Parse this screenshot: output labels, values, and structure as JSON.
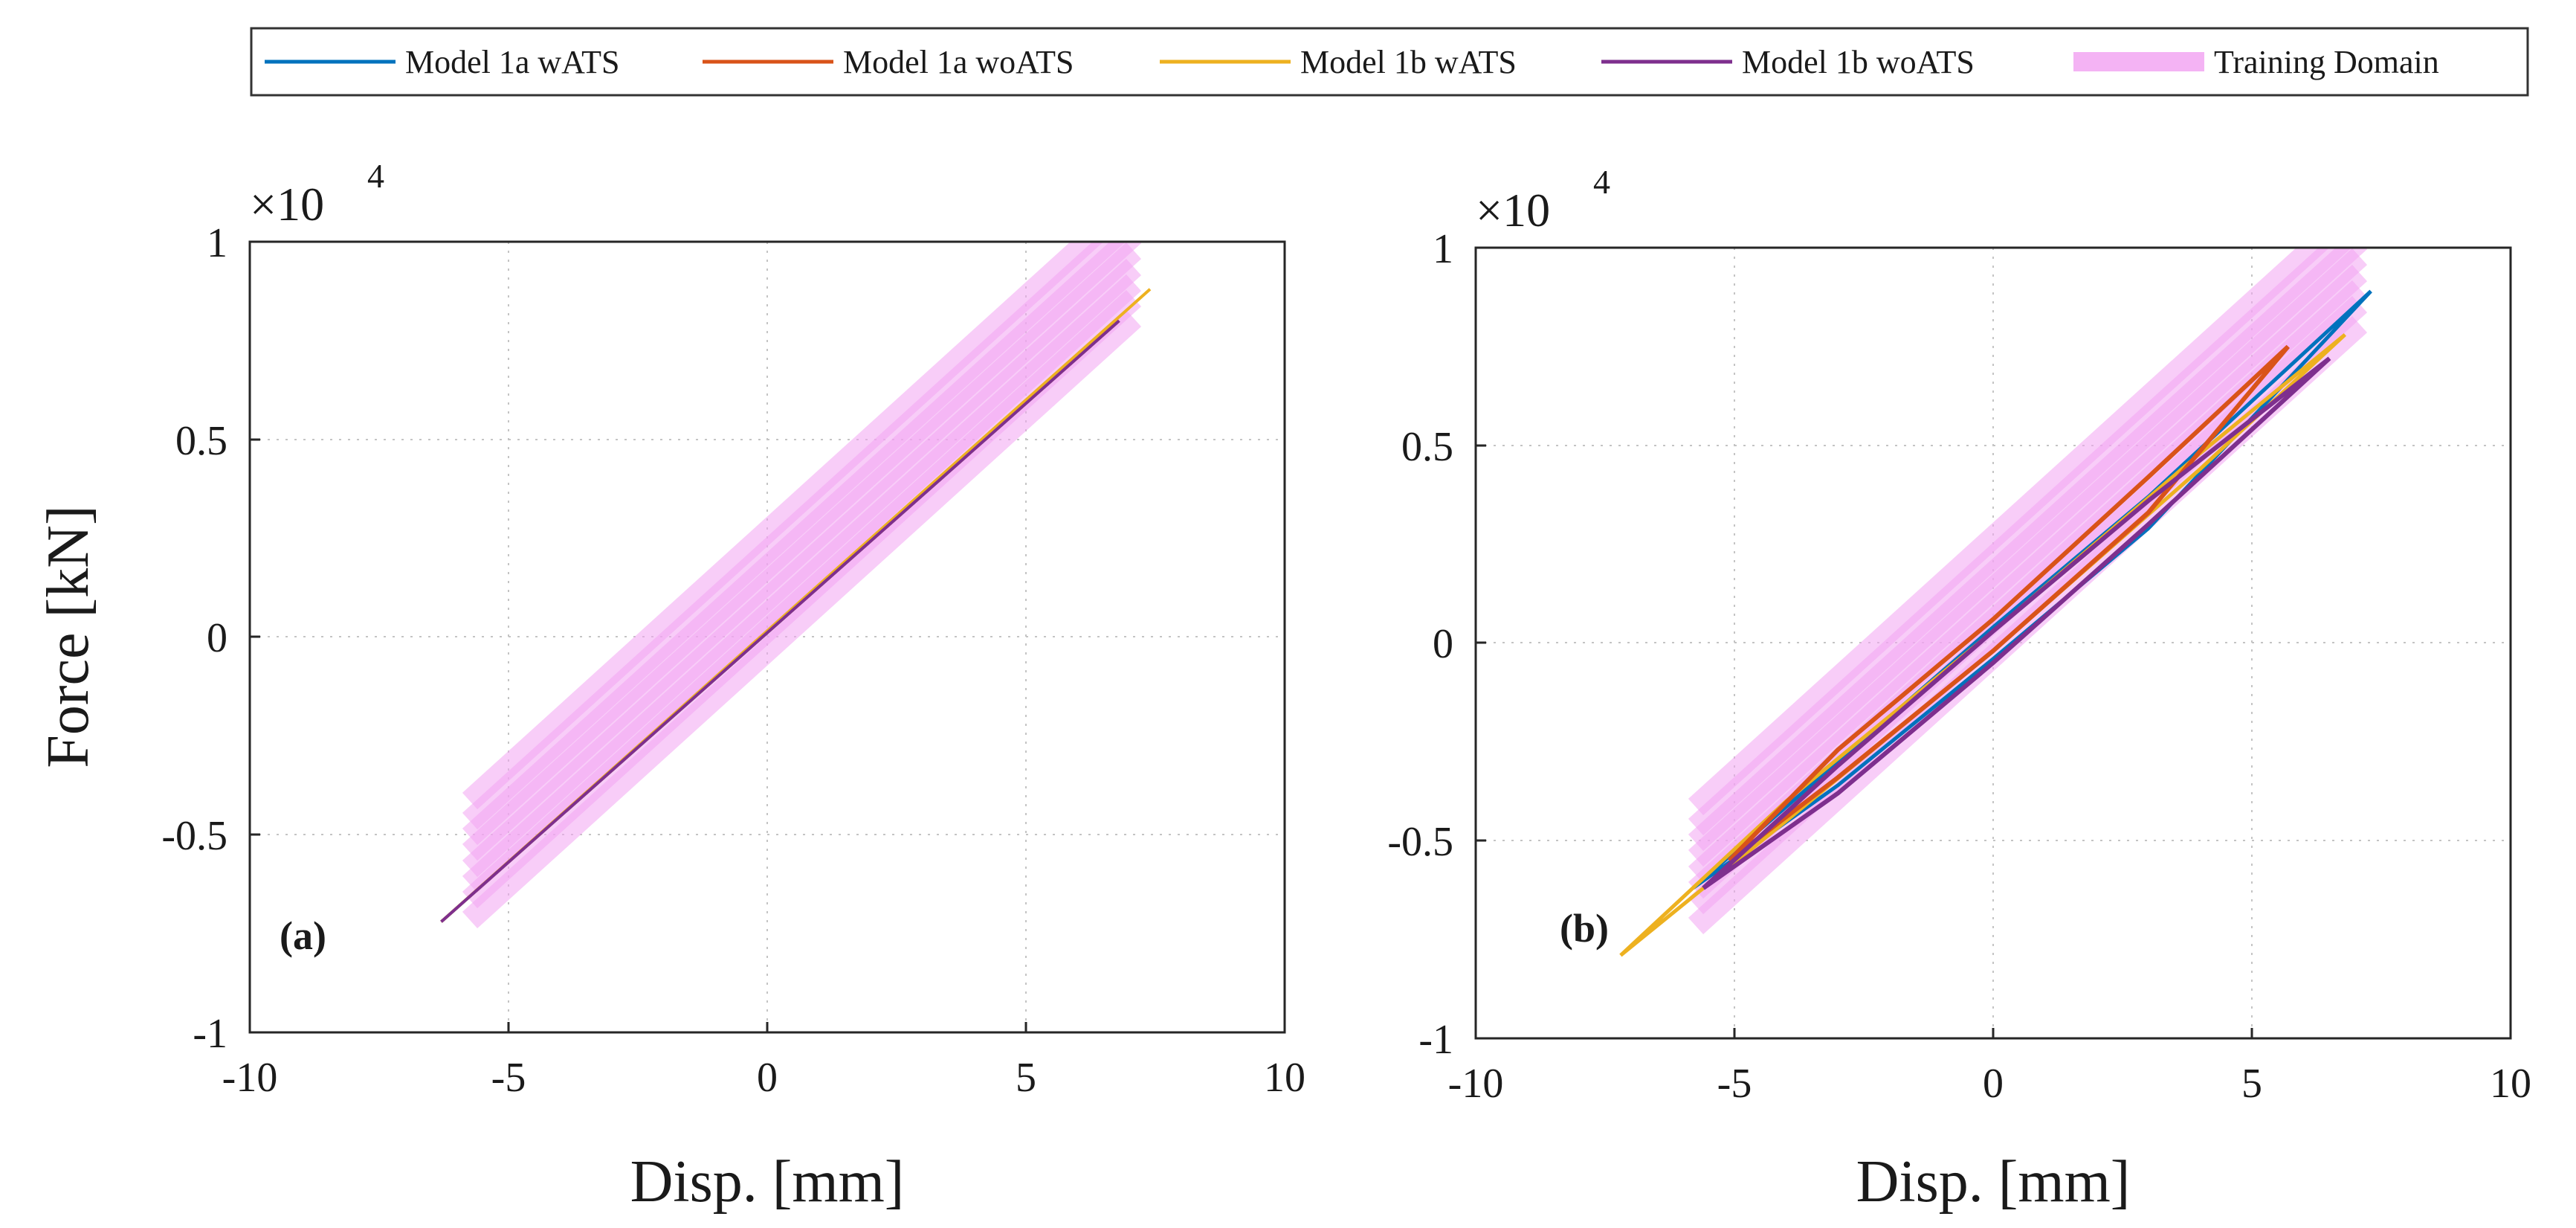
{
  "legend": {
    "entries": [
      {
        "label": "Model 1a wATS",
        "color": "#0072BD"
      },
      {
        "label": "Model 1a woATS",
        "color": "#D95319"
      },
      {
        "label": "Model 1b wATS",
        "color": "#EDB120"
      },
      {
        "label": "Model 1b woATS",
        "color": "#7E2F8E"
      },
      {
        "label": "Training Domain",
        "color": "#F3A6F3"
      }
    ]
  },
  "chart_data": [
    {
      "type": "line",
      "panel_label": "(a)",
      "xlabel": "Disp. [mm]",
      "ylabel": "Force [kN]",
      "exponent_label": "×10",
      "exponent_power": "4",
      "xlim": [
        -10,
        10
      ],
      "ylim": [
        -1,
        1
      ],
      "xticks": [
        -10,
        -5,
        0,
        5,
        10
      ],
      "yticks": [
        -1,
        -0.5,
        0,
        0.5,
        1
      ],
      "xtick_labels": [
        "-10",
        "-5",
        "0",
        "5",
        "10"
      ],
      "ytick_labels": [
        "-1",
        "-0.5",
        "0",
        "0.5",
        "1"
      ],
      "grid": true,
      "training_domain": {
        "band_count": 8,
        "band_center_slope": 1.19,
        "band_center_offsets": [
          -0.16,
          -0.11,
          -0.07,
          -0.03,
          0.01,
          0.05,
          0.09,
          0.14
        ],
        "x_range": [
          -6.5,
          6.8
        ],
        "color": "#F3A6F3"
      },
      "series": [
        {
          "name": "Model 1a wATS",
          "x": [
            -6.3,
            6.8
          ],
          "y": [
            -0.72,
            0.8
          ]
        },
        {
          "name": "Model 1a woATS",
          "x": [
            -6.3,
            6.8
          ],
          "y": [
            -0.72,
            0.8
          ]
        },
        {
          "name": "Model 1b wATS",
          "x": [
            -6.3,
            7.4
          ],
          "y": [
            -0.72,
            0.88
          ]
        },
        {
          "name": "Model 1b woATS",
          "x": [
            -6.3,
            6.8
          ],
          "y": [
            -0.72,
            0.8
          ]
        }
      ]
    },
    {
      "type": "line",
      "panel_label": "(b)",
      "xlabel": "Disp. [mm]",
      "ylabel": "",
      "exponent_label": "×10",
      "exponent_power": "4",
      "xlim": [
        -10,
        10
      ],
      "ylim": [
        -1,
        1
      ],
      "xticks": [
        -10,
        -5,
        0,
        5,
        10
      ],
      "yticks": [
        -1,
        -0.5,
        0,
        0.5,
        1
      ],
      "xtick_labels": [
        "-10",
        "-5",
        "0",
        "5",
        "10"
      ],
      "ytick_labels": [
        "-1",
        "-0.5",
        "0",
        "0.5",
        "1"
      ],
      "grid": true,
      "training_domain": {
        "band_count": 8,
        "band_center_slope": 1.19,
        "band_center_offsets": [
          -0.16,
          -0.11,
          -0.07,
          -0.03,
          0.01,
          0.05,
          0.09,
          0.14
        ],
        "x_range": [
          -6.5,
          6.8
        ],
        "color": "#F3A6F3"
      },
      "series": [
        {
          "name": "Model 1a wATS",
          "x": [
            -5.8,
            -3,
            0,
            3,
            7.3,
            3,
            0,
            -3,
            -5.8
          ],
          "y": [
            -0.62,
            -0.36,
            -0.04,
            0.29,
            0.89,
            0.37,
            0.04,
            -0.3,
            -0.62
          ]
        },
        {
          "name": "Model 1a woATS",
          "x": [
            -5.1,
            -3,
            0,
            3,
            5.7,
            3,
            0,
            -3,
            -5.1
          ],
          "y": [
            -0.55,
            -0.34,
            -0.02,
            0.33,
            0.75,
            0.42,
            0.06,
            -0.27,
            -0.55
          ]
        },
        {
          "name": "Model 1b wATS",
          "x": [
            -7.2,
            -4,
            0,
            4,
            6.8,
            4,
            0,
            -4,
            -7.2
          ],
          "y": [
            -0.79,
            -0.45,
            -0.02,
            0.44,
            0.78,
            0.48,
            0.03,
            -0.4,
            -0.79
          ]
        },
        {
          "name": "Model 1b woATS",
          "x": [
            -5.6,
            -3,
            0,
            3,
            6.5,
            3,
            0,
            -3,
            -5.6
          ],
          "y": [
            -0.62,
            -0.38,
            -0.05,
            0.3,
            0.72,
            0.36,
            0.03,
            -0.31,
            -0.62
          ]
        }
      ]
    }
  ]
}
